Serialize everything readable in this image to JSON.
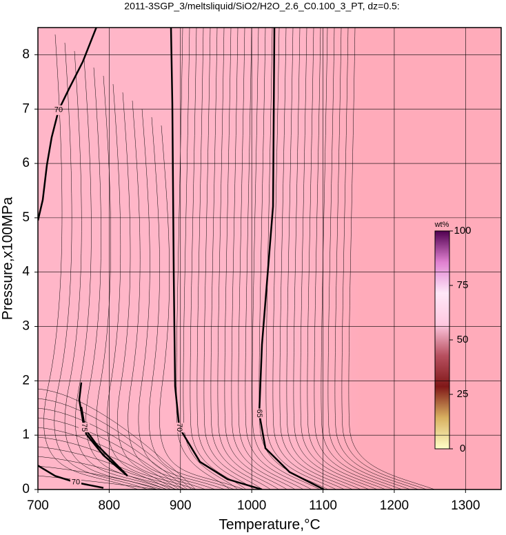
{
  "chart_data": {
    "type": "contour",
    "title": "2011-3SGP_3/meltsliquid/SiO2/H2O_2.6_C0.100_3_PT, dz=0.5:",
    "x_label": "Temperature,°C",
    "y_label": "Pressure,x100MPa",
    "xlim": [
      700,
      1350
    ],
    "ylim": [
      0,
      8.5
    ],
    "xticks": [
      700,
      800,
      900,
      1000,
      1100,
      1200,
      1300
    ],
    "yticks": [
      0,
      1,
      2,
      3,
      4,
      5,
      6,
      7,
      8
    ],
    "grid": true,
    "background_colors": [
      "#ffb6c8",
      "#ffabba"
    ],
    "contours": [
      {
        "level": 70,
        "x": [
          700,
          706.8,
          712.6,
          719.3,
          729,
          743.5,
          762.9,
          782.2
        ],
        "y": [
          4.95,
          5.33,
          5.97,
          6.48,
          6.98,
          7.37,
          7.87,
          8.51
        ]
      },
      {
        "level": 70,
        "x": [
          886.7,
          888.6,
          890.6,
          892.5,
          898.3,
          927.3,
          966,
          1014.4
        ],
        "y": [
          8.51,
          7.11,
          3.94,
          1.9,
          1.14,
          0.51,
          0.19,
          0
        ]
      },
      {
        "level": 65,
        "x": [
          1031.8,
          1029.9,
          1014.4,
          1010.5,
          1019.2,
          1053.1,
          1101.4
        ],
        "y": [
          8.51,
          5.21,
          2.67,
          1.4,
          0.76,
          0.32,
          0
        ]
      },
      {
        "level": 75,
        "x": [
          760.9,
          758,
          764.8,
          782.2,
          816.1,
          825.7,
          791.9,
          767.7,
          760.9
        ],
        "y": [
          1.97,
          1.65,
          1.14,
          0.83,
          0.38,
          0.25,
          0.63,
          1.02,
          1.52
        ]
      },
      {
        "level": 70,
        "x": [
          700,
          724.2,
          753.2,
          791.9
        ],
        "y": [
          0.44,
          0.25,
          0.13,
          0.03
        ]
      }
    ],
    "colorbar": {
      "label": "wt%",
      "lim": [
        0,
        100
      ],
      "ticks": [
        0,
        25,
        50,
        75,
        100
      ],
      "colors": [
        "#ffffc8",
        "#d8b060",
        "#801818",
        "#b85060",
        "#ffc8e0",
        "#ffe8f8",
        "#e080d0",
        "#500050"
      ]
    }
  }
}
